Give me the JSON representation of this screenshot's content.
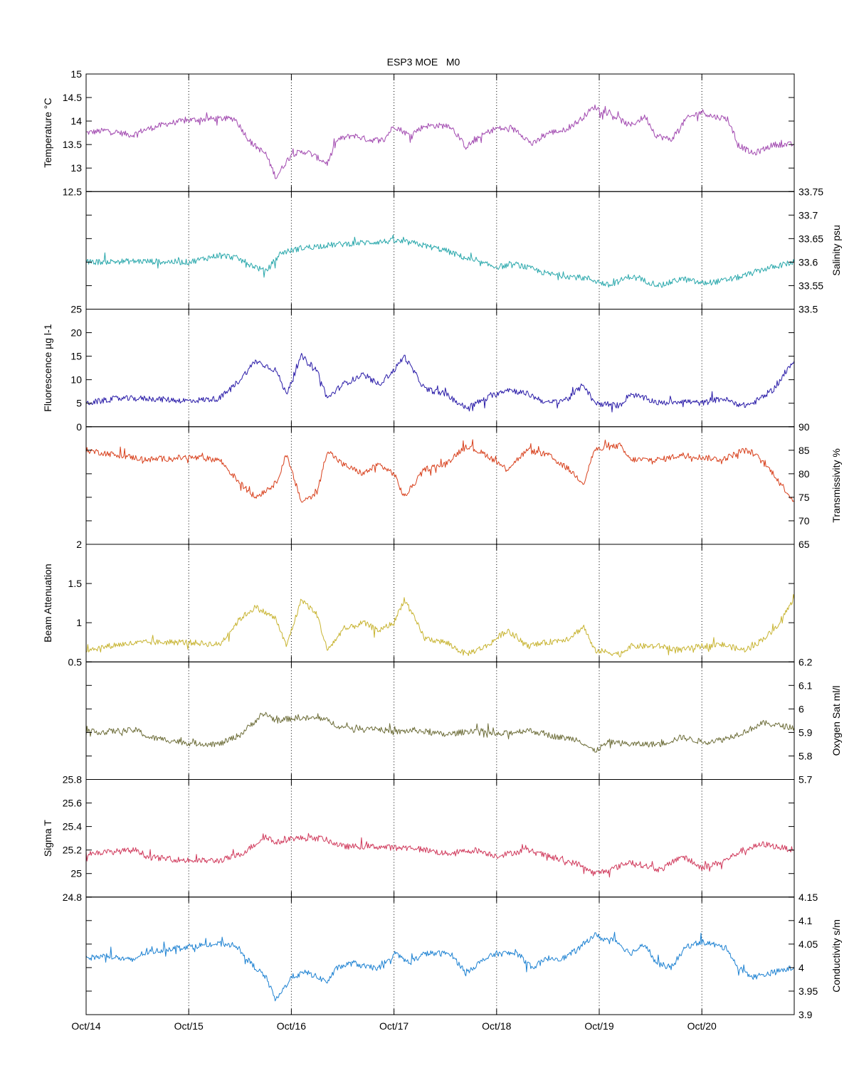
{
  "chart_data": {
    "type": "line",
    "title": "ESP3 MOE   M0",
    "x_ticks": [
      "Oct/14",
      "Oct/15",
      "Oct/16",
      "Oct/17",
      "Oct/18",
      "Oct/19",
      "Oct/20"
    ],
    "x_range_days": [
      14,
      20.9
    ],
    "grid": "vertical dotted at day ticks",
    "panels": [
      {
        "id": "temperature",
        "ylabel": "Temperature °C",
        "side": "left",
        "color": "#a24ab0",
        "ylim": [
          12.5,
          15
        ],
        "ticks": [
          "12.5",
          "13",
          "13.5",
          "14",
          "14.5",
          "15"
        ],
        "tick_values": [
          12.5,
          13,
          13.5,
          14,
          14.5,
          15
        ],
        "x": [
          14.0,
          14.2,
          14.45,
          14.55,
          14.8,
          15.0,
          15.25,
          15.45,
          15.6,
          15.75,
          15.85,
          16.0,
          16.15,
          16.35,
          16.45,
          16.6,
          16.75,
          16.9,
          17.0,
          17.15,
          17.3,
          17.55,
          17.7,
          17.9,
          18.0,
          18.2,
          18.35,
          18.5,
          18.65,
          18.8,
          18.95,
          19.05,
          19.15,
          19.3,
          19.45,
          19.55,
          19.7,
          19.85,
          20.0,
          20.1,
          20.25,
          20.35,
          20.5,
          20.7,
          20.9
        ],
        "y": [
          13.75,
          13.8,
          13.7,
          13.8,
          13.95,
          14.02,
          14.05,
          14.05,
          13.55,
          13.3,
          12.8,
          13.3,
          13.35,
          13.1,
          13.6,
          13.7,
          13.6,
          13.6,
          13.9,
          13.7,
          13.9,
          13.9,
          13.45,
          13.75,
          13.85,
          13.8,
          13.5,
          13.75,
          13.8,
          14.0,
          14.3,
          14.2,
          14.1,
          13.9,
          14.1,
          13.7,
          13.6,
          14.05,
          14.2,
          14.1,
          14.05,
          13.5,
          13.3,
          13.5,
          13.5
        ]
      },
      {
        "id": "salinity",
        "ylabel": "Salinity psu",
        "side": "right",
        "color": "#2aa8ac",
        "ylim": [
          33.5,
          33.75
        ],
        "ticks": [
          "33.5",
          "33.55",
          "33.6",
          "33.65",
          "33.7",
          "33.75"
        ],
        "tick_values": [
          33.5,
          33.55,
          33.6,
          33.65,
          33.7,
          33.75
        ],
        "x": [
          14.0,
          14.5,
          15.0,
          15.3,
          15.45,
          15.65,
          15.75,
          15.9,
          16.1,
          16.3,
          16.6,
          17.0,
          17.2,
          17.5,
          17.8,
          18.0,
          18.2,
          18.5,
          18.7,
          18.9,
          19.1,
          19.3,
          19.6,
          19.8,
          20.0,
          20.2,
          20.4,
          20.6,
          20.9
        ],
        "y": [
          33.6,
          33.602,
          33.6,
          33.615,
          33.61,
          33.59,
          33.58,
          33.62,
          33.63,
          33.635,
          33.64,
          33.645,
          33.64,
          33.625,
          33.6,
          33.59,
          33.595,
          33.575,
          33.57,
          33.565,
          33.55,
          33.57,
          33.55,
          33.565,
          33.555,
          33.56,
          33.57,
          33.585,
          33.6
        ]
      },
      {
        "id": "fluorescence",
        "ylabel": "Fluorescence µg l-1",
        "side": "left",
        "color": "#2a1ca8",
        "ylim": [
          0,
          25
        ],
        "ticks": [
          "0",
          "5",
          "10",
          "15",
          "20",
          "25"
        ],
        "tick_values": [
          0,
          5,
          10,
          15,
          20,
          25
        ],
        "x": [
          14.0,
          14.3,
          14.6,
          15.0,
          15.3,
          15.5,
          15.65,
          15.85,
          15.95,
          16.1,
          16.25,
          16.35,
          16.5,
          16.7,
          16.85,
          17.0,
          17.1,
          17.3,
          17.5,
          17.7,
          17.9,
          18.1,
          18.3,
          18.5,
          18.7,
          18.85,
          18.95,
          19.2,
          19.3,
          19.6,
          19.8,
          20.0,
          20.2,
          20.4,
          20.5,
          20.7,
          20.9
        ],
        "y": [
          5,
          6,
          6,
          5.5,
          6,
          10,
          14,
          12,
          7,
          15,
          12,
          6,
          9,
          11,
          9,
          12,
          15,
          8,
          7,
          4,
          6,
          8,
          7,
          5,
          6,
          9,
          5,
          4.5,
          7,
          5,
          5.5,
          5,
          6,
          4.5,
          5,
          8,
          14
        ]
      },
      {
        "id": "transmissivity",
        "ylabel": "Transmissivity %",
        "side": "right",
        "color": "#d8401c",
        "ylim": [
          65,
          90
        ],
        "ticks": [
          "65",
          "70",
          "75",
          "80",
          "85",
          "90"
        ],
        "tick_values": [
          65,
          70,
          75,
          80,
          85,
          90
        ],
        "x": [
          14.0,
          14.3,
          14.6,
          15.0,
          15.3,
          15.5,
          15.65,
          15.85,
          15.95,
          16.1,
          16.25,
          16.35,
          16.5,
          16.7,
          16.85,
          17.0,
          17.1,
          17.3,
          17.5,
          17.7,
          17.9,
          18.1,
          18.3,
          18.5,
          18.7,
          18.85,
          18.95,
          19.2,
          19.3,
          19.6,
          19.8,
          20.0,
          20.2,
          20.4,
          20.5,
          20.7,
          20.9
        ],
        "y": [
          85,
          84,
          83,
          83.5,
          83,
          78,
          75,
          78,
          84,
          74,
          76,
          85,
          82,
          80,
          82,
          80,
          75,
          81,
          82,
          86,
          84,
          81,
          85,
          84,
          81,
          78,
          85,
          86,
          83,
          83,
          84,
          83.5,
          83,
          85,
          84.5,
          80,
          74
        ]
      },
      {
        "id": "beam_attenuation",
        "ylabel": "Beam Attenuation",
        "side": "left",
        "color": "#c8b432",
        "ylim": [
          0.5,
          2
        ],
        "ticks": [
          "0.5",
          "1",
          "1.5",
          "2"
        ],
        "tick_values": [
          0.5,
          1,
          1.5,
          2
        ],
        "x": [
          14.0,
          14.3,
          14.6,
          15.0,
          15.3,
          15.5,
          15.65,
          15.85,
          15.95,
          16.1,
          16.25,
          16.35,
          16.5,
          16.7,
          16.85,
          17.0,
          17.1,
          17.3,
          17.5,
          17.7,
          17.9,
          18.1,
          18.3,
          18.5,
          18.7,
          18.85,
          18.95,
          19.2,
          19.3,
          19.6,
          19.8,
          20.0,
          20.2,
          20.4,
          20.5,
          20.7,
          20.9
        ],
        "y": [
          0.65,
          0.72,
          0.75,
          0.75,
          0.72,
          1.05,
          1.2,
          1.05,
          0.7,
          1.3,
          1.1,
          0.65,
          0.9,
          1.0,
          0.9,
          1.0,
          1.3,
          0.8,
          0.75,
          0.6,
          0.7,
          0.9,
          0.7,
          0.75,
          0.8,
          0.95,
          0.65,
          0.6,
          0.7,
          0.7,
          0.65,
          0.7,
          0.72,
          0.65,
          0.7,
          0.9,
          1.3
        ]
      },
      {
        "id": "oxygen_sat",
        "ylabel": "Oxygen Sat ml/l",
        "side": "right",
        "color": "#6e6e3a",
        "ylim": [
          5.7,
          6.2
        ],
        "ticks": [
          "5.7",
          "5.8",
          "5.9",
          "6",
          "6.1",
          "6.2"
        ],
        "tick_values": [
          5.7,
          5.8,
          5.9,
          6,
          6.1,
          6.2
        ],
        "x": [
          14.0,
          14.5,
          14.6,
          15.0,
          15.3,
          15.5,
          15.65,
          15.75,
          15.85,
          16.0,
          16.3,
          16.5,
          16.8,
          17.0,
          17.2,
          17.5,
          17.8,
          18.0,
          18.3,
          18.6,
          18.8,
          18.95,
          19.1,
          19.3,
          19.6,
          19.8,
          20.0,
          20.2,
          20.4,
          20.6,
          20.9
        ],
        "y": [
          5.9,
          5.91,
          5.88,
          5.855,
          5.85,
          5.89,
          5.95,
          5.98,
          5.95,
          5.96,
          5.96,
          5.92,
          5.92,
          5.9,
          5.91,
          5.89,
          5.91,
          5.89,
          5.91,
          5.88,
          5.87,
          5.82,
          5.86,
          5.85,
          5.85,
          5.88,
          5.86,
          5.87,
          5.9,
          5.94,
          5.92
        ]
      },
      {
        "id": "sigma_t",
        "ylabel": "Sigma T",
        "side": "left",
        "color": "#d03a5c",
        "ylim": [
          24.8,
          25.8
        ],
        "ticks": [
          "24.8",
          "25",
          "25.2",
          "25.4",
          "25.6",
          "25.8"
        ],
        "tick_values": [
          24.8,
          25,
          25.2,
          25.4,
          25.6,
          25.8
        ],
        "x": [
          14.0,
          14.5,
          14.6,
          15.0,
          15.3,
          15.5,
          15.65,
          15.75,
          15.85,
          16.0,
          16.3,
          16.5,
          16.8,
          17.0,
          17.2,
          17.5,
          17.8,
          18.0,
          18.3,
          18.6,
          18.8,
          18.95,
          19.1,
          19.3,
          19.6,
          19.8,
          20.0,
          20.2,
          20.4,
          20.6,
          20.9
        ],
        "y": [
          25.17,
          25.2,
          25.14,
          25.11,
          25.11,
          25.16,
          25.25,
          25.32,
          25.26,
          25.3,
          25.3,
          25.23,
          25.23,
          25.22,
          25.22,
          25.17,
          25.2,
          25.15,
          25.2,
          25.12,
          25.08,
          25.0,
          25.03,
          25.1,
          25.03,
          25.15,
          25.05,
          25.1,
          25.2,
          25.25,
          25.2
        ]
      },
      {
        "id": "conductivity",
        "ylabel": "Conductivity s/m",
        "side": "right",
        "color": "#1e82d2",
        "ylim": [
          3.9,
          4.15
        ],
        "ticks": [
          "3.9",
          "3.95",
          "4",
          "4.05",
          "4.1",
          "4.15"
        ],
        "tick_values": [
          3.9,
          3.95,
          4,
          4.05,
          4.1,
          4.15
        ],
        "x": [
          14.0,
          14.2,
          14.45,
          14.55,
          14.8,
          15.0,
          15.25,
          15.45,
          15.6,
          15.75,
          15.85,
          16.0,
          16.15,
          16.35,
          16.45,
          16.6,
          16.75,
          16.9,
          17.0,
          17.15,
          17.3,
          17.55,
          17.7,
          17.9,
          18.0,
          18.2,
          18.35,
          18.5,
          18.65,
          18.8,
          18.95,
          19.05,
          19.15,
          19.3,
          19.45,
          19.55,
          19.7,
          19.85,
          20.0,
          20.1,
          20.25,
          20.35,
          20.5,
          20.7,
          20.9
        ],
        "y": [
          4.02,
          4.025,
          4.015,
          4.03,
          4.04,
          4.045,
          4.05,
          4.05,
          4.01,
          3.98,
          3.93,
          3.98,
          3.99,
          3.97,
          4.0,
          4.01,
          4.0,
          4.0,
          4.03,
          4.01,
          4.03,
          4.03,
          3.99,
          4.02,
          4.03,
          4.03,
          4.0,
          4.02,
          4.02,
          4.04,
          4.07,
          4.06,
          4.06,
          4.03,
          4.05,
          4.01,
          4.0,
          4.045,
          4.055,
          4.05,
          4.04,
          4.0,
          3.98,
          3.99,
          4.0
        ]
      }
    ]
  }
}
